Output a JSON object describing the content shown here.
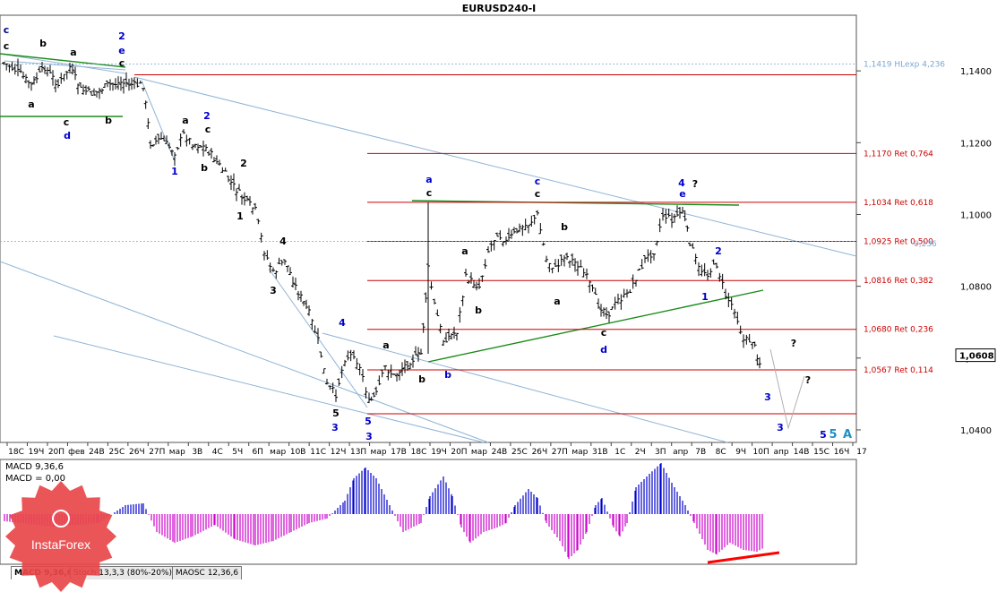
{
  "chart_data": {
    "type": "candlestick",
    "title": "EURUSD240-I",
    "symbol": "EURUSD",
    "timeframe": "H4",
    "current_price": "1,0608",
    "y_ticks": [
      "1,1400",
      "1,1200",
      "1,1000",
      "1,0800",
      "1,0600",
      "1,0400"
    ],
    "y_tick_values": [
      1.14,
      1.12,
      1.1,
      1.08,
      1.06,
      1.04
    ],
    "ylim": [
      1.0365,
      1.1555
    ],
    "x_ticks": [
      "18С",
      "19Ч",
      "20П",
      "фев",
      "24В",
      "25С",
      "26Ч",
      "27П",
      "мар",
      "3В",
      "4С",
      "5Ч",
      "6П",
      "мар",
      "10В",
      "11С",
      "12Ч",
      "13П",
      "мар",
      "17В",
      "18С",
      "19Ч",
      "20П",
      "мар",
      "24В",
      "25С",
      "26Ч",
      "27П",
      "мар",
      "31В",
      "1С",
      "2Ч",
      "3П",
      "апр",
      "7В",
      "8С",
      "9Ч",
      "10П",
      "апр",
      "14В",
      "15С",
      "16Ч",
      "17"
    ],
    "fib_levels": [
      {
        "label": "1,1419 HLexp 4,236",
        "value": 1.1419,
        "color": "#7aa6d6"
      },
      {
        "label": "1,1170 Ret 0,764",
        "value": 1.117,
        "color": "#cc0000"
      },
      {
        "label": "1,1034 Ret 0,618",
        "value": 1.1034,
        "color": "#cc0000"
      },
      {
        "label": "1,0925 Ret 0,500",
        "value": 1.0925,
        "color": "#cc0000"
      },
      {
        "label": "1,0816 Ret 0,382",
        "value": 1.0816,
        "color": "#cc0000"
      },
      {
        "label": "1,0680 Ret 0,236",
        "value": 1.068,
        "color": "#cc0000"
      },
      {
        "label": "1,0567 Ret 0,114",
        "value": 1.0567,
        "color": "#cc0000"
      }
    ],
    "overlap_label_fragment": "0,236",
    "wave_labels": [
      {
        "text": "c",
        "color": "#00008b"
      },
      {
        "text": "c",
        "color": "#000000"
      },
      {
        "text": "b",
        "color": "#000000"
      },
      {
        "text": "a",
        "color": "#000000"
      },
      {
        "text": "2",
        "color": "#0000cc"
      },
      {
        "text": "e",
        "color": "#0000cc"
      },
      {
        "text": "c",
        "color": "#000000"
      },
      {
        "text": "a",
        "color": "#000000"
      },
      {
        "text": "c",
        "color": "#000000"
      },
      {
        "text": "b",
        "color": "#000000"
      },
      {
        "text": "d",
        "color": "#0000cc"
      },
      {
        "text": "a",
        "color": "#000000"
      },
      {
        "text": "2",
        "color": "#0000cc"
      },
      {
        "text": "c",
        "color": "#000000"
      },
      {
        "text": "1",
        "color": "#0000cc"
      },
      {
        "text": "b",
        "color": "#000000"
      },
      {
        "text": "2",
        "color": "#000000"
      },
      {
        "text": "1",
        "color": "#000000"
      },
      {
        "text": "4",
        "color": "#000000"
      },
      {
        "text": "3",
        "color": "#000000"
      },
      {
        "text": "4",
        "color": "#0000cc"
      },
      {
        "text": "5",
        "color": "#000000"
      },
      {
        "text": "3",
        "color": "#0000cc"
      },
      {
        "text": "5",
        "color": "#0000cc"
      },
      {
        "text": "3",
        "color": "#0000cc"
      },
      {
        "text": "a",
        "color": "#000000"
      },
      {
        "text": "b",
        "color": "#000000"
      },
      {
        "text": "b",
        "color": "#0000cc"
      },
      {
        "text": "a",
        "color": "#0000cc"
      },
      {
        "text": "c",
        "color": "#000000"
      },
      {
        "text": "a",
        "color": "#000000"
      },
      {
        "text": "b",
        "color": "#000000"
      },
      {
        "text": "c",
        "color": "#0000cc"
      },
      {
        "text": "c",
        "color": "#000000"
      },
      {
        "text": "b",
        "color": "#000000"
      },
      {
        "text": "a",
        "color": "#000000"
      },
      {
        "text": "c",
        "color": "#000000"
      },
      {
        "text": "d",
        "color": "#0000cc"
      },
      {
        "text": "4",
        "color": "#0000cc"
      },
      {
        "text": "?",
        "color": "#000000"
      },
      {
        "text": "e",
        "color": "#0000cc"
      },
      {
        "text": "2",
        "color": "#0000cc"
      },
      {
        "text": "1",
        "color": "#0000cc"
      },
      {
        "text": "?",
        "color": "#000000"
      },
      {
        "text": "?",
        "color": "#000000"
      },
      {
        "text": "3",
        "color": "#0000cc"
      },
      {
        "text": "3",
        "color": "#0000cc"
      },
      {
        "text": "5",
        "color": "#0000cc"
      },
      {
        "text": "5",
        "color": "#1e90c8"
      },
      {
        "text": "A",
        "color": "#1e90c8"
      }
    ],
    "macd": {
      "label": "MACD 9,36,6",
      "value_label": "MACD = 0,00",
      "pos_color": "#0000cc",
      "neg_color": "#cc00cc",
      "divergence_color": "#ff0000"
    }
  },
  "tabs": [
    {
      "label": "MACD 9,36,6"
    },
    {
      "label": "Stoch 13,3,3 (80%-20%)"
    },
    {
      "label": "MAOSC 12,36,6"
    }
  ],
  "logo": {
    "text": "InstaForex",
    "color": "#e8474a"
  }
}
